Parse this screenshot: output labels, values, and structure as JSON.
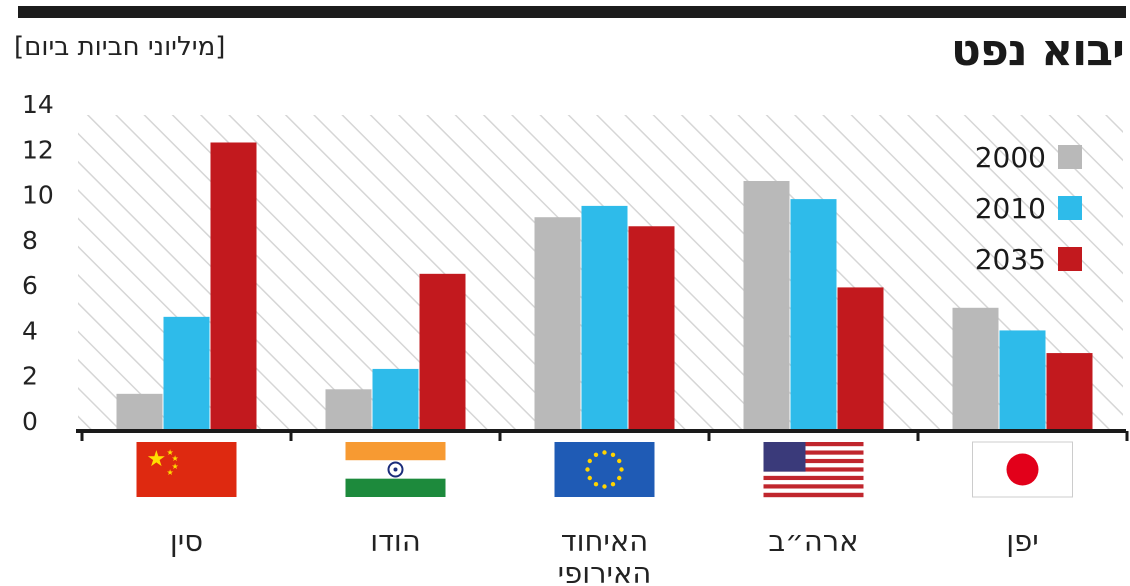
{
  "header": {
    "title": "יבוא נפט",
    "unit": "[מיליוני חביות ביום]"
  },
  "colors": {
    "2000": "#b9b9b9",
    "2010": "#2ebbea",
    "2035": "#c2191e"
  },
  "flags": [
    "china-flag",
    "india-flag",
    "eu-flag",
    "usa-flag",
    "japan-flag"
  ],
  "chart_data": {
    "type": "bar",
    "title": "יבוא נפט",
    "subtitle": "[מיליוני חביות ביום]",
    "categories": [
      [
        "סין"
      ],
      [
        "הודו"
      ],
      [
        "האיחוד",
        "האירופי"
      ],
      [
        "ארה״ב"
      ],
      [
        "יפן"
      ]
    ],
    "series": [
      {
        "name": "2000",
        "values": [
          1.2,
          1.4,
          9.0,
          10.6,
          5.0
        ]
      },
      {
        "name": "2010",
        "values": [
          4.6,
          2.3,
          9.5,
          9.8,
          4.0
        ]
      },
      {
        "name": "2035",
        "values": [
          12.3,
          6.5,
          8.6,
          5.9,
          3.0
        ]
      }
    ],
    "y_ticks": [
      0,
      2,
      4,
      6,
      8,
      10,
      12,
      14
    ],
    "ylim": [
      0,
      14
    ],
    "grid": false,
    "legend_position": "top-right"
  }
}
